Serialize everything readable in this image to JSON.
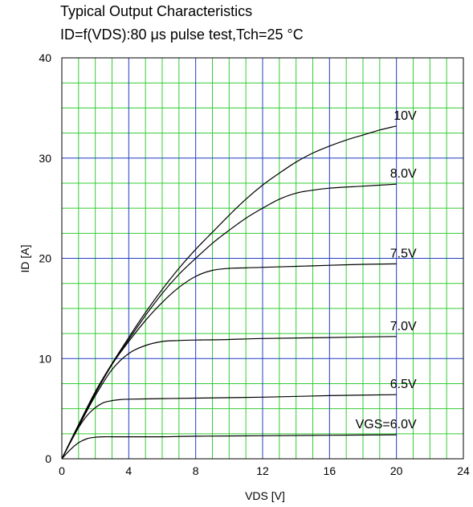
{
  "chart_data": {
    "type": "line",
    "title": "Typical Output Characteristics",
    "subtitle": "ID=f(VDS):80 μs pulse test,Tch=25 °C",
    "xlabel": "VDS [V]",
    "ylabel": "ID [A]",
    "xlim": [
      0,
      24
    ],
    "ylim": [
      0,
      40
    ],
    "xticks": [
      "0",
      "4",
      "8",
      "12",
      "16",
      "20",
      "24"
    ],
    "yticks": [
      "0",
      "10",
      "20",
      "30",
      "40"
    ],
    "grid": true,
    "colors": {
      "major_grid": "#1f3fbf",
      "minor_grid": "#33cc33",
      "curve": "#000000",
      "frame": "#000000"
    },
    "series": [
      {
        "name": "VGS=6.0V",
        "x": [
          0,
          0.5,
          1,
          1.5,
          2,
          2.5,
          3,
          4,
          6,
          8,
          12,
          16,
          20
        ],
        "y": [
          0,
          0.9,
          1.6,
          2.0,
          2.15,
          2.2,
          2.2,
          2.2,
          2.2,
          2.25,
          2.3,
          2.35,
          2.4
        ]
      },
      {
        "name": "6.5V",
        "x": [
          0,
          0.5,
          1,
          1.5,
          2,
          2.5,
          3,
          3.5,
          4,
          6,
          8,
          12,
          16,
          20
        ],
        "y": [
          0,
          1.6,
          3.1,
          4.3,
          5.1,
          5.6,
          5.8,
          5.9,
          5.95,
          6.0,
          6.05,
          6.15,
          6.3,
          6.4
        ]
      },
      {
        "name": "7.0V",
        "x": [
          0,
          1,
          2,
          3,
          4,
          5,
          6,
          7,
          8,
          10,
          12,
          16,
          20
        ],
        "y": [
          0,
          3.2,
          6.3,
          8.9,
          10.5,
          11.3,
          11.7,
          11.8,
          11.85,
          11.9,
          12.0,
          12.1,
          12.2
        ]
      },
      {
        "name": "7.5V",
        "x": [
          0,
          1,
          2,
          3,
          4,
          5,
          6,
          7,
          8,
          9,
          10,
          11,
          12,
          14,
          16,
          18,
          20
        ],
        "y": [
          0,
          3.3,
          6.5,
          9.4,
          11.7,
          13.8,
          15.6,
          17.1,
          18.2,
          18.8,
          19.0,
          19.05,
          19.1,
          19.2,
          19.3,
          19.4,
          19.45
        ]
      },
      {
        "name": "8.0V",
        "x": [
          0,
          1,
          2,
          3,
          4,
          5,
          6,
          7,
          8,
          9,
          10,
          11,
          12,
          13,
          14,
          15,
          16,
          18,
          20
        ],
        "y": [
          0,
          3.4,
          6.6,
          9.4,
          11.9,
          14.3,
          16.5,
          18.4,
          20.0,
          21.5,
          22.8,
          24.0,
          25.0,
          25.9,
          26.5,
          26.8,
          27.0,
          27.2,
          27.4
        ]
      },
      {
        "name": "10V",
        "x": [
          0,
          1,
          2,
          3,
          4,
          5,
          6,
          7,
          8,
          9,
          10,
          11,
          12,
          13,
          14,
          15,
          16,
          17,
          18,
          19,
          20
        ],
        "y": [
          0,
          3.4,
          6.7,
          9.5,
          12.1,
          14.6,
          16.9,
          19.0,
          20.9,
          22.6,
          24.3,
          25.9,
          27.3,
          28.5,
          29.6,
          30.5,
          31.2,
          31.8,
          32.3,
          32.8,
          33.2
        ]
      }
    ]
  }
}
